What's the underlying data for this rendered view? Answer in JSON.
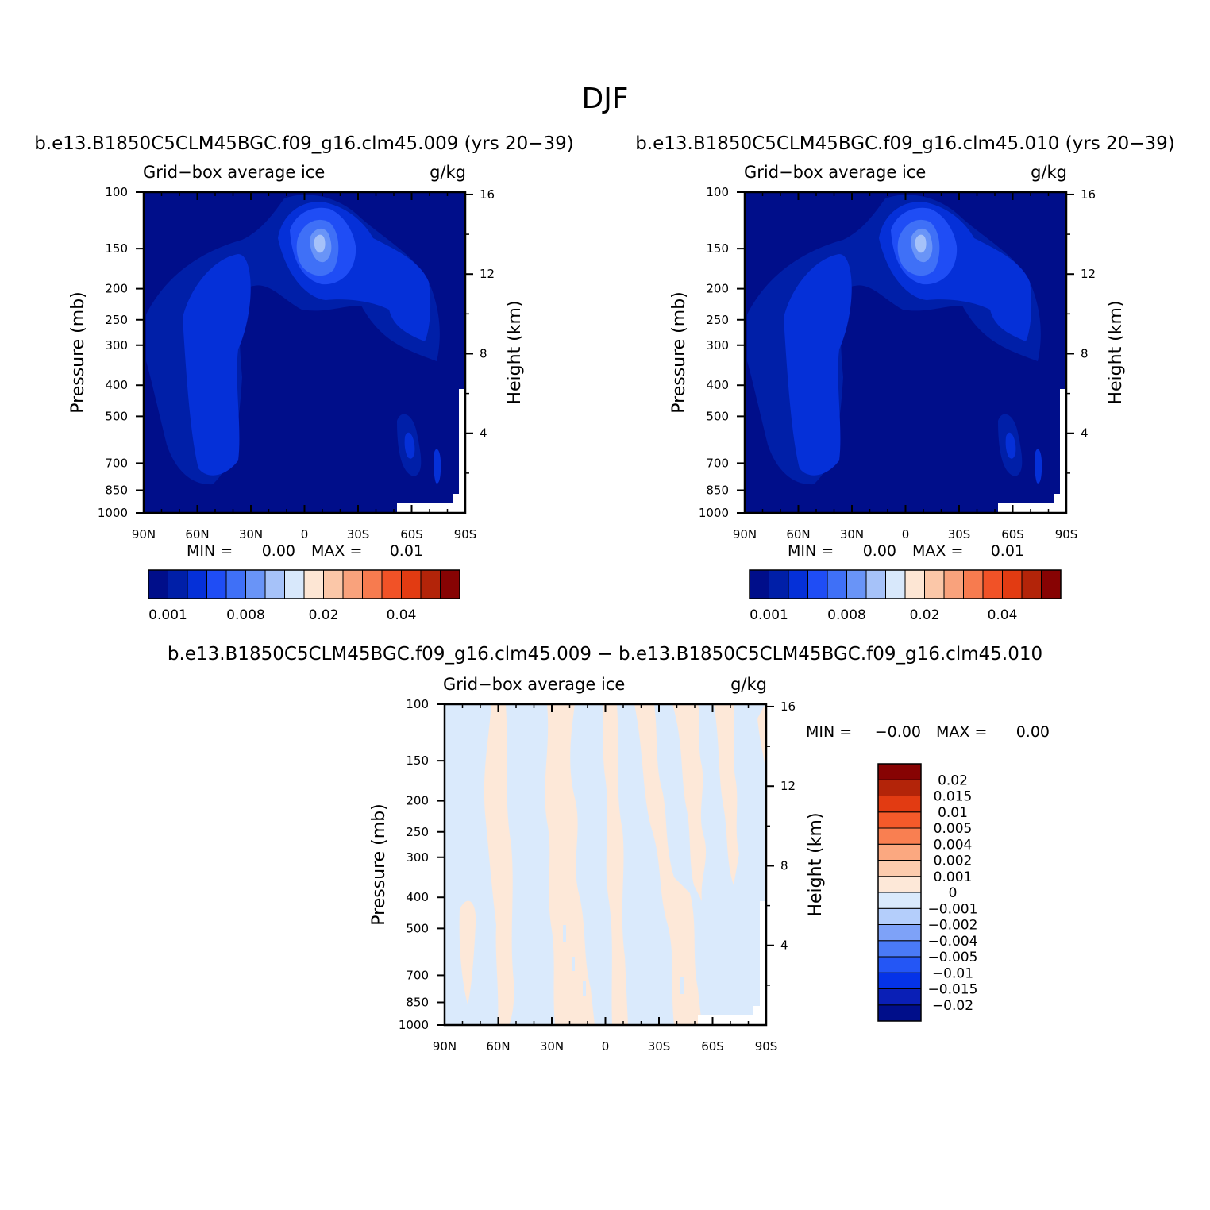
{
  "figure": {
    "title": "DJF"
  },
  "panels": [
    {
      "title": "b.e13.B1850C5CLM45BGC.f09_g16.clm45.009 (yrs 20−39)",
      "left_label": "Grid−box average ice",
      "right_label": "g/kg",
      "min_label": "MIN =",
      "min_value": "0.00",
      "max_label": "MAX =",
      "max_value": "0.01",
      "colorbar_labels": [
        "0.001",
        "0.008",
        "0.02",
        "0.04"
      ]
    },
    {
      "title": "b.e13.B1850C5CLM45BGC.f09_g16.clm45.010 (yrs 20−39)",
      "left_label": "Grid−box average ice",
      "right_label": "g/kg",
      "min_label": "MIN =",
      "min_value": "0.00",
      "max_label": "MAX =",
      "max_value": "0.01",
      "colorbar_labels": [
        "0.001",
        "0.008",
        "0.02",
        "0.04"
      ]
    },
    {
      "title": "b.e13.B1850C5CLM45BGC.f09_g16.clm45.009 − b.e13.B1850C5CLM45BGC.f09_g16.clm45.010",
      "left_label": "Grid−box average ice",
      "right_label": "g/kg",
      "min_label": "MIN =",
      "min_value": "−0.00",
      "max_label": "MAX =",
      "max_value": "0.00",
      "colorbar_labels": [
        "0.02",
        "0.015",
        "0.01",
        "0.005",
        "0.004",
        "0.002",
        "0.001",
        "0",
        "−0.001",
        "−0.002",
        "−0.004",
        "−0.005",
        "−0.01",
        "−0.015",
        "−0.02"
      ]
    }
  ],
  "axes": {
    "ylabel": "Pressure (mb)",
    "ylabel_right": "Height (km)",
    "pressure_ticks": [
      "100",
      "150",
      "200",
      "250",
      "300",
      "400",
      "500",
      "700",
      "850",
      "1000"
    ],
    "height_ticks": [
      "16",
      "12",
      "8",
      "4"
    ],
    "lat_ticks": [
      "90N",
      "60N",
      "30N",
      "0",
      "30S",
      "60S",
      "90S"
    ]
  },
  "palettes": {
    "abs": [
      "#000e8a",
      "#001fa8",
      "#0530d8",
      "#1f4df5",
      "#3f70f7",
      "#6994f7",
      "#a6c2f9",
      "#d8e8fb",
      "#fde6d4",
      "#fbc7a8",
      "#f9a27c",
      "#f77b4f",
      "#f15227",
      "#e23b12",
      "#b32409",
      "#870303"
    ],
    "diff_bottom_to_top": [
      "#000e8a",
      "#0a1fb6",
      "#0533e8",
      "#2456f5",
      "#4a7af7",
      "#7ea2f8",
      "#b4cefb",
      "#daeafc",
      "#fde8d8",
      "#fccbad",
      "#fba880",
      "#f97f51",
      "#f45a2a",
      "#e23b12",
      "#b32409",
      "#870303"
    ]
  },
  "chart_data": [
    {
      "type": "heatmap",
      "title": "b.e13.B1850C5CLM45BGC.f09_g16.clm45.009 (yrs 20−39)",
      "variable": "Grid−box average ice",
      "units": "g/kg",
      "xlabel": "",
      "ylabel": "Pressure (mb)",
      "ylabel_right": "Height (km)",
      "x_ticks": [
        "90N",
        "60N",
        "30N",
        "0",
        "30S",
        "60S",
        "90S"
      ],
      "xlim": [
        90,
        -90
      ],
      "ylim": [
        1000,
        100
      ],
      "yscale": "log",
      "min": 0.0,
      "max": 0.01,
      "contour_levels": [
        0.001,
        0.002,
        0.003,
        0.004,
        0.006,
        0.008,
        0.01,
        0.015,
        0.02,
        0.025,
        0.03,
        0.035,
        0.04,
        0.045,
        0.05
      ],
      "features": [
        {
          "type": "upper-tropospheric maximum",
          "lat": -5,
          "pressure_mb": 250,
          "level": 6
        },
        {
          "type": "NH mid-latitude column",
          "lat": 45,
          "pressure_mb": 600,
          "level": 3
        },
        {
          "type": "SH high-latitude low-level cloud",
          "lat": -60,
          "pressure_mb": 820,
          "level": 3
        }
      ]
    },
    {
      "type": "heatmap",
      "title": "b.e13.B1850C5CLM45BGC.f09_g16.clm45.010 (yrs 20−39)",
      "variable": "Grid−box average ice",
      "units": "g/kg",
      "xlabel": "",
      "ylabel": "Pressure (mb)",
      "ylabel_right": "Height (km)",
      "x_ticks": [
        "90N",
        "60N",
        "30N",
        "0",
        "30S",
        "60S",
        "90S"
      ],
      "xlim": [
        90,
        -90
      ],
      "ylim": [
        1000,
        100
      ],
      "yscale": "log",
      "min": 0.0,
      "max": 0.01,
      "contour_levels": [
        0.001,
        0.002,
        0.003,
        0.004,
        0.006,
        0.008,
        0.01,
        0.015,
        0.02,
        0.025,
        0.03,
        0.035,
        0.04,
        0.045,
        0.05
      ],
      "features": [
        {
          "type": "upper-tropospheric maximum",
          "lat": -5,
          "pressure_mb": 250,
          "level": 6
        },
        {
          "type": "NH mid-latitude column",
          "lat": 45,
          "pressure_mb": 600,
          "level": 3
        },
        {
          "type": "SH high-latitude low-level cloud",
          "lat": -60,
          "pressure_mb": 820,
          "level": 3
        }
      ]
    },
    {
      "type": "heatmap",
      "title": "b.e13.B1850C5CLM45BGC.f09_g16.clm45.009 − b.e13.B1850C5CLM45BGC.f09_g16.clm45.010",
      "variable": "Grid−box average ice",
      "units": "g/kg",
      "xlabel": "",
      "ylabel": "Pressure (mb)",
      "ylabel_right": "Height (km)",
      "x_ticks": [
        "90N",
        "60N",
        "30N",
        "0",
        "30S",
        "60S",
        "90S"
      ],
      "xlim": [
        90,
        -90
      ],
      "ylim": [
        1000,
        100
      ],
      "yscale": "log",
      "min": -0.0,
      "max": 0.0,
      "contour_levels": [
        -0.02,
        -0.015,
        -0.01,
        -0.005,
        -0.004,
        -0.002,
        -0.001,
        0,
        0.001,
        0.002,
        0.004,
        0.005,
        0.01,
        0.015,
        0.02
      ],
      "legend": "right"
    }
  ]
}
